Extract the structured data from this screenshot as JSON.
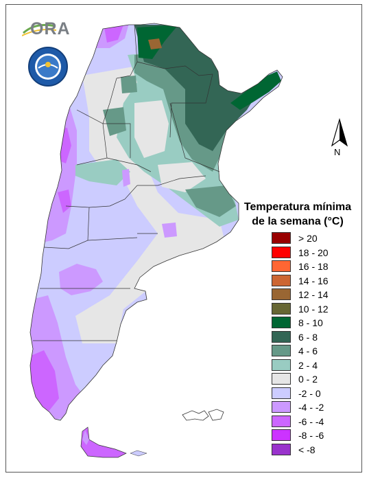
{
  "map": {
    "legend_title_line1": "Temperatura mínima",
    "legend_title_line2": "de la semana (°C)",
    "north_label": "N",
    "logo_text": "ORA",
    "legend": [
      {
        "label": "> 20",
        "color": "#990000"
      },
      {
        "label": "18 - 20",
        "color": "#ff0000"
      },
      {
        "label": "16 - 18",
        "color": "#ff6633"
      },
      {
        "label": "14 - 16",
        "color": "#cc6633"
      },
      {
        "label": "12 - 14",
        "color": "#996633"
      },
      {
        "label": "10 - 12",
        "color": "#666633"
      },
      {
        "label": "8 - 10",
        "color": "#006633"
      },
      {
        "label": "6 - 8",
        "color": "#336655"
      },
      {
        "label": "4 - 6",
        "color": "#669988"
      },
      {
        "label": "2 - 4",
        "color": "#99ccc2"
      },
      {
        "label": "0 - 2",
        "color": "#e6e6e6"
      },
      {
        "label": "-2 - 0",
        "color": "#ccccff"
      },
      {
        "label": "-4 - -2",
        "color": "#cc99ff"
      },
      {
        "label": "-6 - -4",
        "color": "#cc66ff"
      },
      {
        "label": "-8 - -6",
        "color": "#cc33ff"
      },
      {
        "label": "< -8",
        "color": "#9933cc"
      }
    ]
  }
}
